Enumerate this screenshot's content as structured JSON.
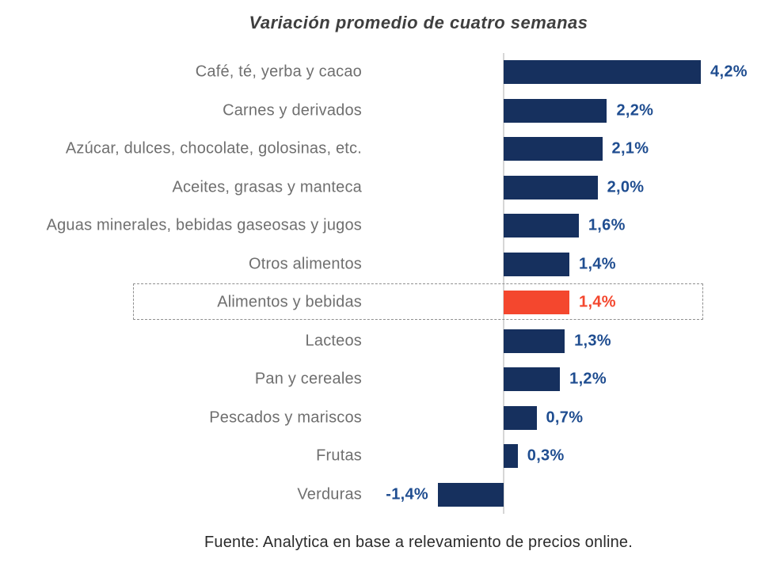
{
  "title": "Variación promedio de cuatro semanas",
  "source": "Fuente: Analytica en base a relevamiento de precios online.",
  "colors": {
    "bar": "#16305E",
    "highlight_bar": "#F4472E",
    "value_label": "#1F4D90",
    "highlight_value_label": "#F4472E",
    "category_label": "#6F6F6F",
    "axis_line": "#D6D6D6",
    "highlight_box_border": "#8F8F8F"
  },
  "chart_data": {
    "type": "bar",
    "orientation": "horizontal",
    "title": "Variación promedio de cuatro semanas",
    "xlabel": "",
    "ylabel": "",
    "grid": false,
    "legend": false,
    "xlim": [
      -1.6,
      4.6
    ],
    "unit": "%",
    "categories": [
      "Café, té, yerba y cacao",
      "Carnes y derivados",
      "Azúcar, dulces, chocolate, golosinas, etc.",
      "Aceites, grasas y manteca",
      "Aguas minerales, bebidas gaseosas y jugos",
      "Otros alimentos",
      "Alimentos y bebidas",
      "Lacteos",
      "Pan y cereales",
      "Pescados y mariscos",
      "Frutas",
      "Verduras"
    ],
    "values": [
      4.2,
      2.2,
      2.1,
      2.0,
      1.6,
      1.4,
      1.4,
      1.3,
      1.2,
      0.7,
      0.3,
      -1.4
    ],
    "value_labels": [
      "4,2%",
      "2,2%",
      "2,1%",
      "2,0%",
      "1,6%",
      "1,4%",
      "1,4%",
      "1,3%",
      "1,2%",
      "0,7%",
      "0,3%",
      "-1,4%"
    ],
    "highlighted_category": "Alimentos y bebidas",
    "highlighted_index": 6
  }
}
